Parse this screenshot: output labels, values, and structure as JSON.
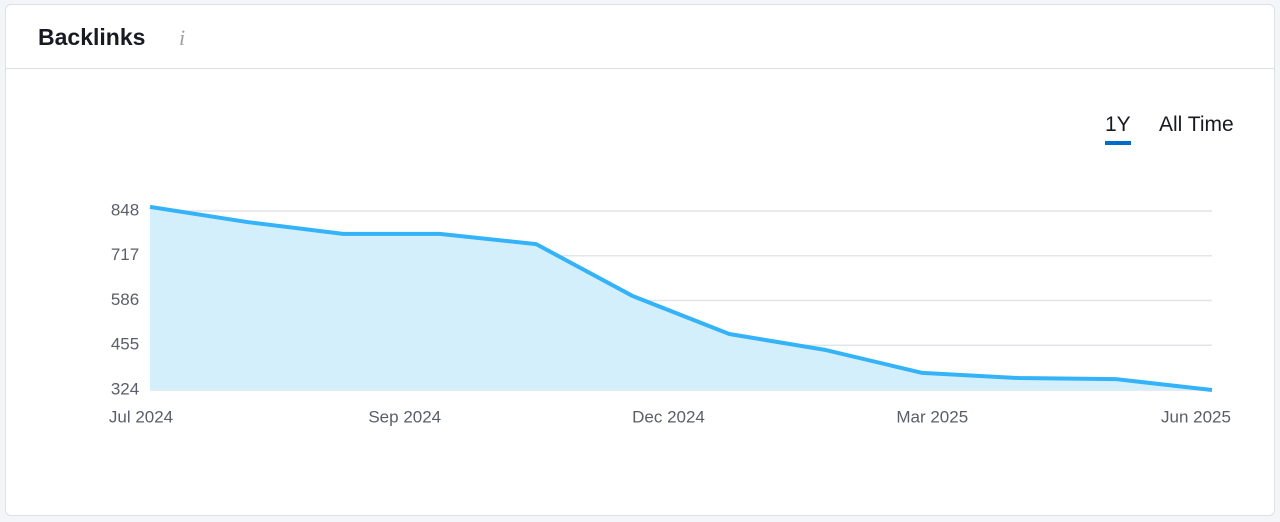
{
  "header": {
    "title": "Backlinks",
    "info": "i"
  },
  "tabs": [
    "1Y",
    "All Time"
  ],
  "chart_data": {
    "type": "line",
    "values": [
      860,
      816,
      781,
      781,
      751,
      599,
      488,
      441,
      374,
      359,
      356,
      324
    ],
    "xticks": [
      "Jul 2024",
      "Sep 2024",
      "Dec 2024",
      "Mar 2025",
      "Jun 2025"
    ],
    "ylim": [
      324,
      848
    ],
    "yticks": [
      324,
      455,
      586,
      717,
      848
    ],
    "color": "#35b3f9",
    "area_color": "#d4effc",
    "grid": true
  }
}
